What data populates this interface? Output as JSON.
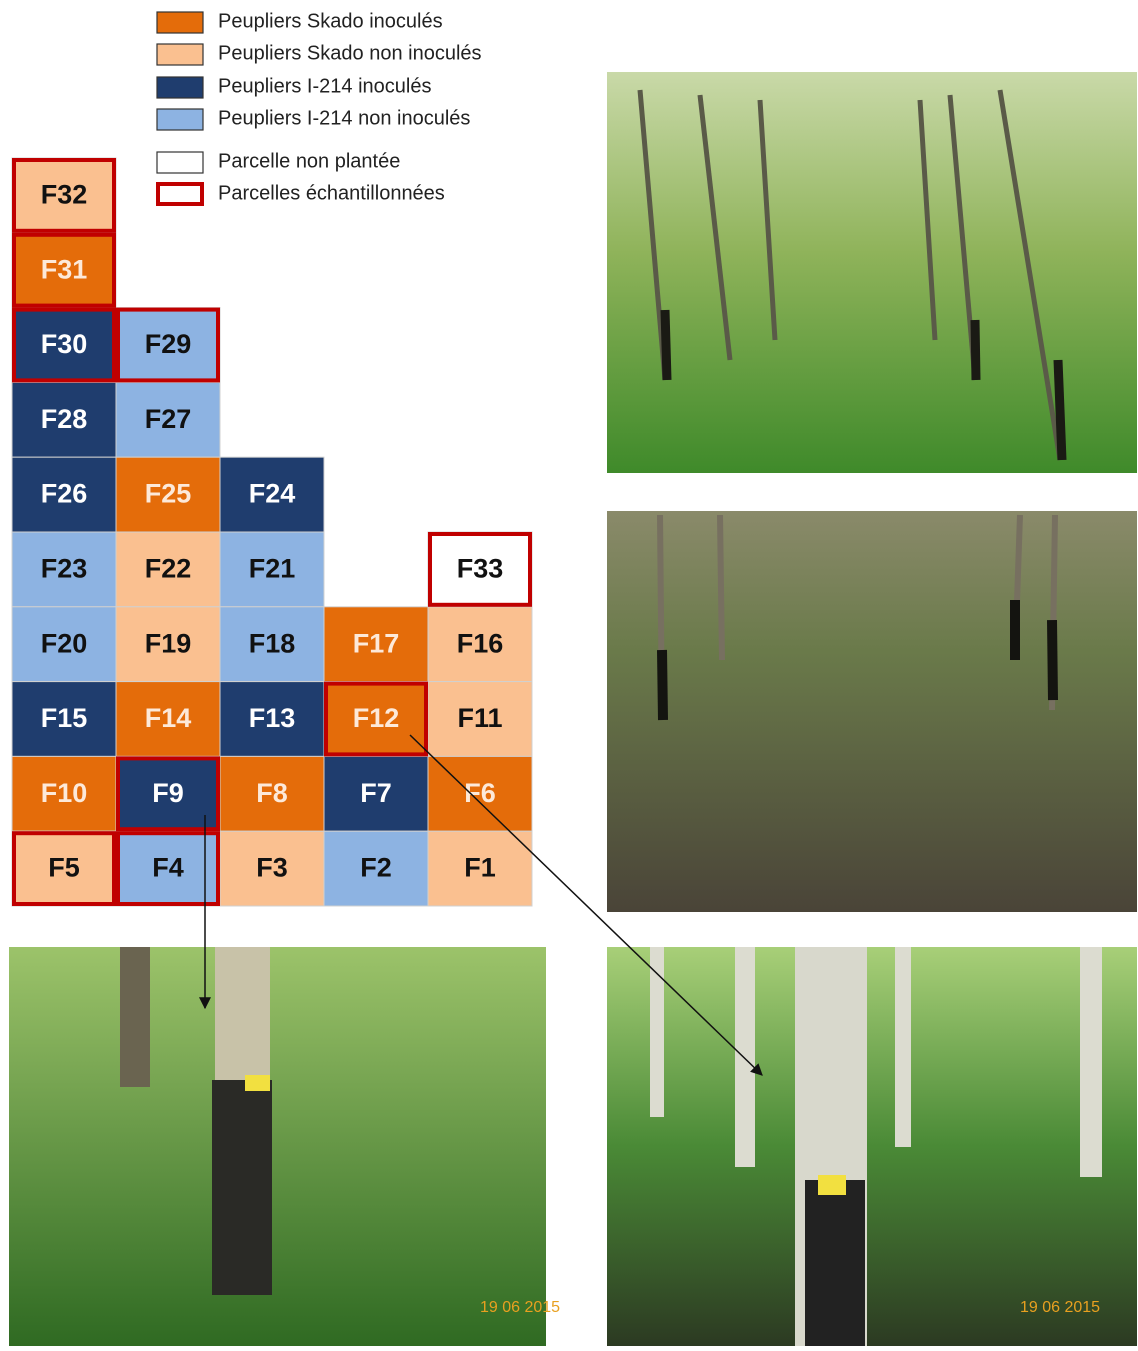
{
  "legend": [
    {
      "label": "Peupliers Skado inoculés",
      "color": "#e46c0a",
      "text_color": "#fde9d9"
    },
    {
      "label": "Peupliers Skado non inoculés",
      "color": "#fac090",
      "text_color": "#111111"
    },
    {
      "label": "Peupliers I-214 inoculés",
      "color": "#1f3d6e",
      "text_color": "#ffffff"
    },
    {
      "label": "Peupliers I-214 non inoculés",
      "color": "#8db3e2",
      "text_color": "#111111"
    },
    {
      "label": "Parcelle non plantée",
      "color": "#ffffff",
      "text_color": "#111111"
    }
  ],
  "sampled_legend": {
    "label": "Parcelles échantillonnées",
    "color": "#c00000"
  },
  "grid": {
    "rows": [
      [
        {
          "label": "F32",
          "legend": 1,
          "sampled": true
        },
        null,
        null,
        null,
        null
      ],
      [
        {
          "label": "F31",
          "legend": 0,
          "sampled": true
        },
        null,
        null,
        null,
        null
      ],
      [
        {
          "label": "F30",
          "legend": 2,
          "sampled": true
        },
        {
          "label": "F29",
          "legend": 3,
          "sampled": true
        },
        null,
        null,
        null
      ],
      [
        {
          "label": "F28",
          "legend": 2,
          "sampled": false
        },
        {
          "label": "F27",
          "legend": 3,
          "sampled": false
        },
        null,
        null,
        null
      ],
      [
        {
          "label": "F26",
          "legend": 2,
          "sampled": false
        },
        {
          "label": "F25",
          "legend": 0,
          "sampled": false
        },
        {
          "label": "F24",
          "legend": 2,
          "sampled": false
        },
        null,
        null
      ],
      [
        {
          "label": "F23",
          "legend": 3,
          "sampled": false
        },
        {
          "label": "F22",
          "legend": 1,
          "sampled": false
        },
        {
          "label": "F21",
          "legend": 3,
          "sampled": false
        },
        null,
        {
          "label": "F33",
          "legend": 4,
          "sampled": true
        }
      ],
      [
        {
          "label": "F20",
          "legend": 3,
          "sampled": false
        },
        {
          "label": "F19",
          "legend": 1,
          "sampled": false
        },
        {
          "label": "F18",
          "legend": 3,
          "sampled": false
        },
        {
          "label": "F17",
          "legend": 0,
          "sampled": false
        },
        {
          "label": "F16",
          "legend": 1,
          "sampled": false
        }
      ],
      [
        {
          "label": "F15",
          "legend": 2,
          "sampled": false
        },
        {
          "label": "F14",
          "legend": 0,
          "sampled": false
        },
        {
          "label": "F13",
          "legend": 2,
          "sampled": false
        },
        {
          "label": "F12",
          "legend": 0,
          "sampled": true
        },
        {
          "label": "F11",
          "legend": 1,
          "sampled": false
        }
      ],
      [
        {
          "label": "F10",
          "legend": 0,
          "sampled": false
        },
        {
          "label": "F9",
          "legend": 2,
          "sampled": true
        },
        {
          "label": "F8",
          "legend": 0,
          "sampled": false
        },
        {
          "label": "F7",
          "legend": 2,
          "sampled": false
        },
        {
          "label": "F6",
          "legend": 0,
          "sampled": false
        }
      ],
      [
        {
          "label": "F5",
          "legend": 1,
          "sampled": true
        },
        {
          "label": "F4",
          "legend": 3,
          "sampled": true
        },
        {
          "label": "F3",
          "legend": 1,
          "sampled": false
        },
        {
          "label": "F2",
          "legend": 3,
          "sampled": false
        },
        {
          "label": "F1",
          "legend": 1,
          "sampled": false
        }
      ]
    ]
  },
  "photos": {
    "bottom_left_date": "19 06 2015",
    "bottom_right_date": "19 06 2015"
  }
}
